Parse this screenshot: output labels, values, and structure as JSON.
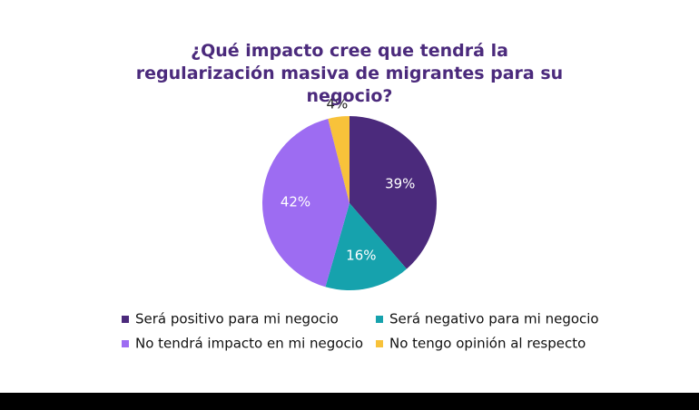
{
  "chart_data": {
    "type": "pie",
    "title": "¿Qué impacto cree que tendrá la regularización masiva de migrantes para su negocio?",
    "labels": [
      "Será positivo para mi negocio",
      "Será negativo para mi negocio",
      "No tendrá impacto en mi negocio",
      "No tengo opinión al respecto"
    ],
    "values": [
      39,
      16,
      42,
      4
    ],
    "value_labels": [
      "39%",
      "16%",
      "42%",
      "4%"
    ],
    "colors": [
      "#4b2a7c",
      "#16a2ad",
      "#9d6cf2",
      "#f8c23a"
    ]
  }
}
